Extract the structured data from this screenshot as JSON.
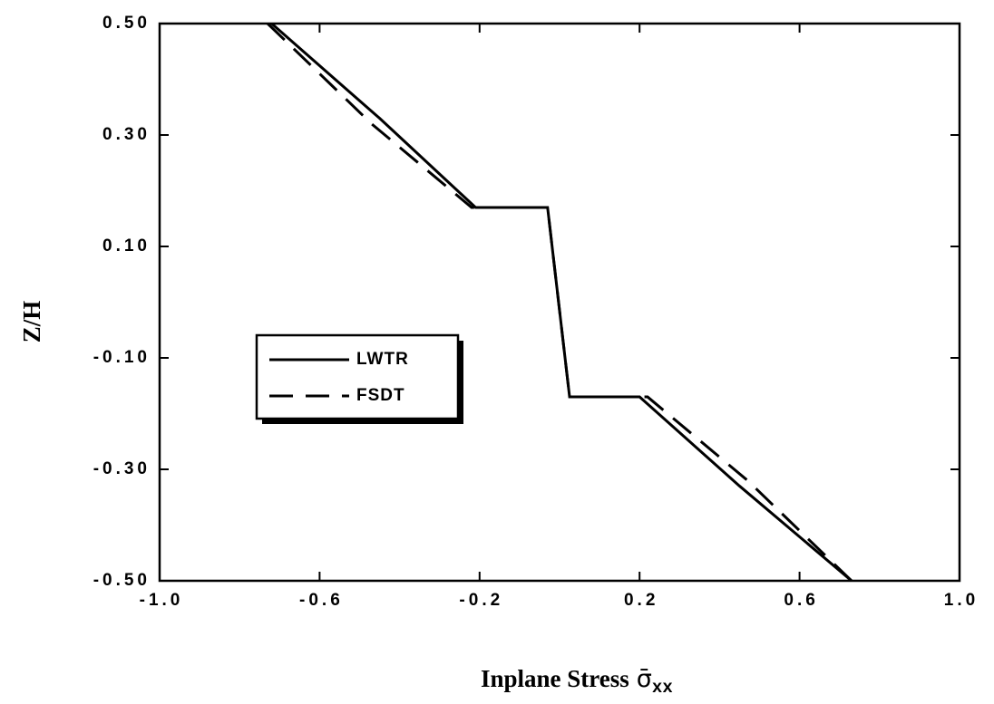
{
  "chart_data": {
    "type": "line",
    "x_label": {
      "text": "Inplane Stress",
      "symbol": "σ̄",
      "subscript": "xx"
    },
    "y_label": "Z/H",
    "xlim": [
      -1,
      1
    ],
    "ylim": [
      -0.5,
      0.5
    ],
    "xticks": [
      {
        "value": -1,
        "label": "-1.0"
      },
      -0.6,
      -0.2,
      0.2,
      0.6,
      {
        "value": 1,
        "label": "1.0"
      }
    ],
    "yticks": [
      {
        "value": 0.5,
        "label": "0.50"
      },
      {
        "value": 0.3,
        "label": "0.30"
      },
      {
        "value": 0.1,
        "label": "0.10"
      },
      {
        "value": -0.1,
        "label": "-0.10"
      },
      {
        "value": -0.3,
        "label": "-0.30"
      },
      {
        "value": -0.5,
        "label": "-0.50"
      }
    ],
    "series": [
      {
        "name": "LWTR",
        "color": "#000000",
        "dash": "solid",
        "x": [
          -0.72,
          -0.45,
          -0.21,
          -0.03,
          0.025,
          0.2,
          0.45,
          0.73
        ],
        "values": [
          0.5,
          0.33,
          0.17,
          0.17,
          -0.17,
          -0.17,
          -0.33,
          -0.5
        ]
      },
      {
        "name": "FSDT",
        "color": "#000000",
        "dash": "dashed",
        "x": [
          -0.73,
          -0.47,
          -0.22,
          -0.03,
          0.025,
          0.22,
          0.47,
          0.73
        ],
        "values": [
          0.5,
          0.32,
          0.17,
          0.17,
          -0.17,
          -0.17,
          -0.32,
          -0.5
        ]
      }
    ]
  }
}
